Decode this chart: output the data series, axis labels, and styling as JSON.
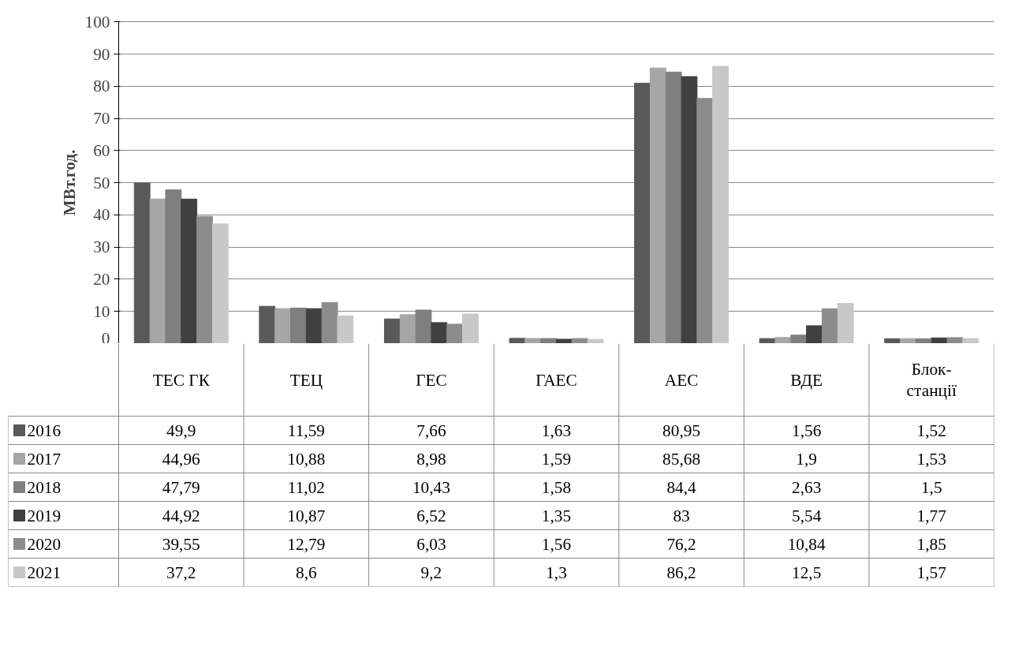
{
  "chart_data": {
    "type": "bar",
    "ylabel": "МВт.год.",
    "categories": [
      "ТЕС ГК",
      "ТЕЦ",
      "ГЕС",
      "ГАЕС",
      "АЕС",
      "ВДЕ",
      "Блок-станції"
    ],
    "ylim": [
      0,
      100
    ],
    "yticks": [
      0,
      10,
      20,
      30,
      40,
      50,
      60,
      70,
      80,
      90,
      100
    ],
    "grid": "y",
    "legend": "bottom",
    "series": [
      {
        "name": "2016",
        "color": "#595959",
        "values": [
          49.9,
          11.59,
          7.66,
          1.63,
          80.95,
          1.56,
          1.52
        ],
        "value_labels": [
          "49,9",
          "11,59",
          "7,66",
          "1,63",
          "80,95",
          "1,56",
          "1,52"
        ]
      },
      {
        "name": "2017",
        "color": "#a6a6a6",
        "values": [
          44.96,
          10.88,
          8.98,
          1.59,
          85.68,
          1.9,
          1.53
        ],
        "value_labels": [
          "44,96",
          "10,88",
          "8,98",
          "1,59",
          "85,68",
          "1,9",
          "1,53"
        ]
      },
      {
        "name": "2018",
        "color": "#7f7f7f",
        "values": [
          47.79,
          11.02,
          10.43,
          1.58,
          84.4,
          2.63,
          1.5
        ],
        "value_labels": [
          "47,79",
          "11,02",
          "10,43",
          "1,58",
          "84,4",
          "2,63",
          "1,5"
        ]
      },
      {
        "name": "2019",
        "color": "#404040",
        "values": [
          44.92,
          10.87,
          6.52,
          1.35,
          83,
          5.54,
          1.77
        ],
        "value_labels": [
          "44,92",
          "10,87",
          "6,52",
          "1,35",
          "83",
          "5,54",
          "1,77"
        ]
      },
      {
        "name": "2020",
        "color": "#8c8c8c",
        "values": [
          39.55,
          12.79,
          6.03,
          1.56,
          76.2,
          10.84,
          1.85
        ],
        "value_labels": [
          "39,55",
          "12,79",
          "6,03",
          "1,56",
          "76,2",
          "10,84",
          "1,85"
        ]
      },
      {
        "name": "2021",
        "color": "#c8c8c8",
        "values": [
          37.2,
          8.6,
          9.2,
          1.3,
          86.2,
          12.5,
          1.57
        ],
        "value_labels": [
          "37,2",
          "8,6",
          "9,2",
          "1,3",
          "86,2",
          "12,5",
          "1,57"
        ]
      }
    ]
  }
}
